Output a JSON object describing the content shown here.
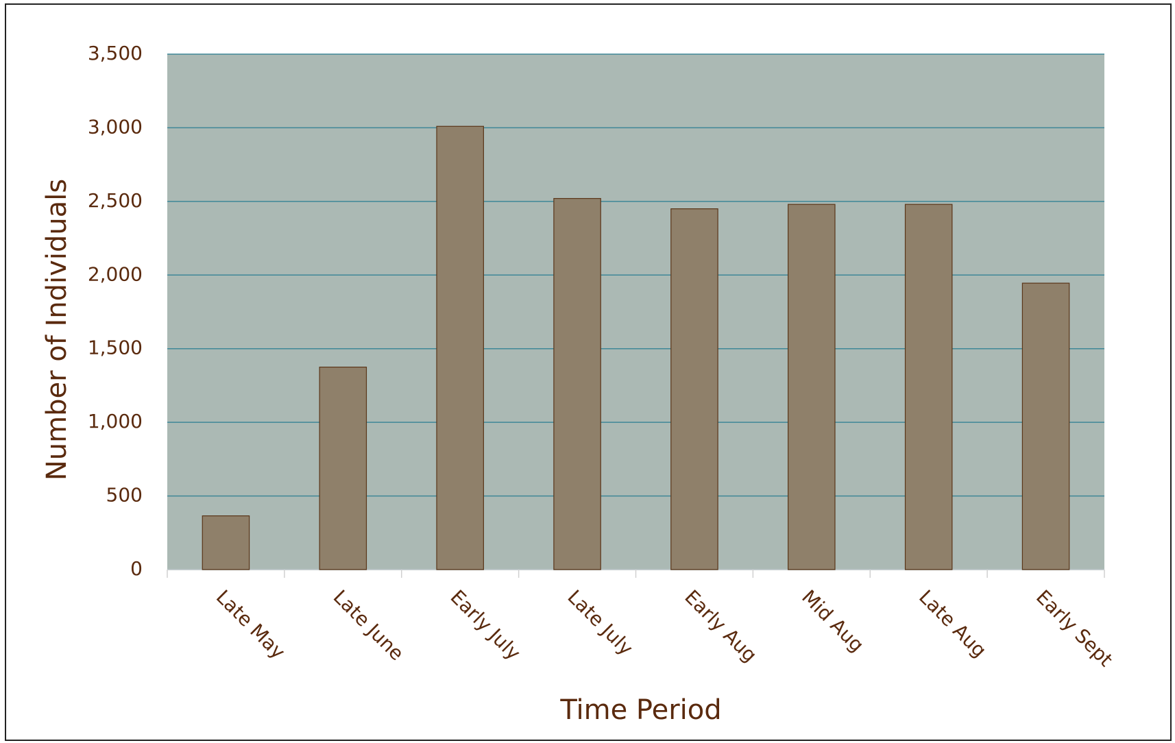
{
  "chart_data": {
    "type": "bar",
    "x_label": "Time Period",
    "y_label": "Number of Individuals",
    "categories": [
      "Late May",
      "Late June",
      "Early July",
      "Late July",
      "Early Aug",
      "Mid Aug",
      "Late Aug",
      "Early Sept"
    ],
    "values": [
      365,
      1375,
      3010,
      2520,
      2450,
      2480,
      2480,
      1945
    ],
    "color": "#8f806a",
    "ylim": [
      0,
      3500
    ],
    "yticks": [
      0,
      500,
      {
        "value": 1000,
        "label": "1,000"
      },
      {
        "value": 1500,
        "label": "1,500"
      },
      {
        "value": 2000,
        "label": "2,000"
      },
      {
        "value": 2500,
        "label": "2,500"
      },
      {
        "value": 3000,
        "label": "3,000"
      },
      {
        "value": 3500,
        "label": "3,500"
      }
    ],
    "grid": true
  }
}
